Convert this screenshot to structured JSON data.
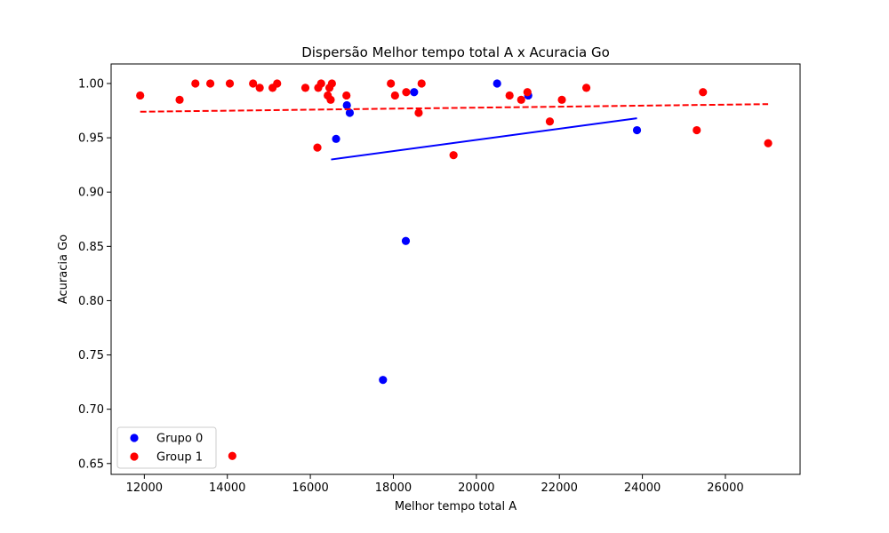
{
  "chart_data": {
    "type": "scatter",
    "title": "Dispersão Melhor tempo total A x Acuracia Go",
    "xlabel": "Melhor tempo total A",
    "ylabel": "Acuracia Go",
    "xlim": [
      11200,
      27800
    ],
    "ylim": [
      0.64,
      1.018
    ],
    "xticks": [
      12000,
      14000,
      16000,
      18000,
      20000,
      22000,
      24000,
      26000
    ],
    "xtick_labels": [
      "12000",
      "14000",
      "16000",
      "18000",
      "20000",
      "22000",
      "24000",
      "26000"
    ],
    "yticks": [
      0.65,
      0.7,
      0.75,
      0.8,
      0.85,
      0.9,
      0.95,
      1.0
    ],
    "ytick_labels": [
      "0.65",
      "0.70",
      "0.75",
      "0.80",
      "0.85",
      "0.90",
      "0.95",
      "1.00"
    ],
    "grid": false,
    "legend_position": "lower-left",
    "series": [
      {
        "name": "Grupo 0",
        "color": "#0000ff",
        "points": [
          [
            16620,
            0.949
          ],
          [
            16880,
            0.98
          ],
          [
            16950,
            0.973
          ],
          [
            17750,
            0.727
          ],
          [
            18300,
            0.855
          ],
          [
            18500,
            0.992
          ],
          [
            20500,
            1.0
          ],
          [
            21250,
            0.989
          ],
          [
            23870,
            0.957
          ]
        ],
        "trendline": {
          "x": [
            16500,
            23870
          ],
          "y": [
            0.93,
            0.968
          ],
          "style": "solid"
        }
      },
      {
        "name": "Group 1",
        "color": "#ff0000",
        "points": [
          [
            11900,
            0.989
          ],
          [
            12850,
            0.985
          ],
          [
            13230,
            1.0
          ],
          [
            13590,
            1.0
          ],
          [
            14060,
            1.0
          ],
          [
            14120,
            0.657
          ],
          [
            14620,
            1.0
          ],
          [
            14780,
            0.996
          ],
          [
            15090,
            0.996
          ],
          [
            15200,
            1.0
          ],
          [
            15880,
            0.996
          ],
          [
            16170,
            0.941
          ],
          [
            16190,
            0.996
          ],
          [
            16260,
            1.0
          ],
          [
            16420,
            0.989
          ],
          [
            16460,
            0.996
          ],
          [
            16490,
            0.985
          ],
          [
            16520,
            1.0
          ],
          [
            16870,
            0.989
          ],
          [
            17940,
            1.0
          ],
          [
            18040,
            0.989
          ],
          [
            18310,
            0.992
          ],
          [
            18610,
            0.973
          ],
          [
            18680,
            1.0
          ],
          [
            19450,
            0.934
          ],
          [
            20800,
            0.989
          ],
          [
            21080,
            0.985
          ],
          [
            21230,
            0.992
          ],
          [
            21770,
            0.965
          ],
          [
            22060,
            0.985
          ],
          [
            22650,
            0.996
          ],
          [
            25310,
            0.957
          ],
          [
            25460,
            0.992
          ],
          [
            27030,
            0.945
          ]
        ],
        "trendline": {
          "x": [
            11900,
            27030
          ],
          "y": [
            0.974,
            0.981
          ],
          "style": "dashed"
        }
      }
    ]
  }
}
